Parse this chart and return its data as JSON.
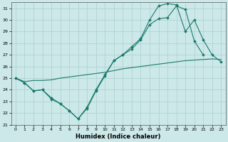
{
  "xlabel": "Humidex (Indice chaleur)",
  "bg_color": "#cce8e8",
  "grid_color": "#aad0d0",
  "line_color": "#1a7a6e",
  "xlim": [
    -0.5,
    23.5
  ],
  "ylim": [
    21,
    31.5
  ],
  "yticks": [
    21,
    22,
    23,
    24,
    25,
    26,
    27,
    28,
    29,
    30,
    31
  ],
  "xticks": [
    0,
    1,
    2,
    3,
    4,
    5,
    6,
    7,
    8,
    9,
    10,
    11,
    12,
    13,
    14,
    15,
    16,
    17,
    18,
    19,
    20,
    21,
    22,
    23
  ],
  "line1_x": [
    0,
    1,
    2,
    3,
    4,
    5,
    6,
    7,
    8,
    9,
    10,
    11,
    12,
    13,
    14,
    15,
    16,
    17,
    18,
    19,
    20,
    21,
    22,
    23
  ],
  "line1_y": [
    25.0,
    24.7,
    24.8,
    24.8,
    24.85,
    25.0,
    25.1,
    25.2,
    25.3,
    25.4,
    25.5,
    25.65,
    25.8,
    25.9,
    26.0,
    26.1,
    26.2,
    26.3,
    26.4,
    26.5,
    26.55,
    26.6,
    26.65,
    26.6
  ],
  "line2_x": [
    0,
    1,
    2,
    3,
    4,
    5,
    6,
    7,
    8,
    9,
    10,
    11,
    12,
    13,
    14,
    15,
    16,
    17,
    18,
    19,
    20,
    21
  ],
  "line2_y": [
    25.0,
    24.6,
    23.9,
    24.0,
    23.3,
    22.8,
    22.2,
    21.5,
    22.4,
    23.9,
    25.2,
    26.5,
    27.0,
    27.5,
    28.3,
    29.6,
    30.1,
    30.2,
    31.2,
    30.9,
    28.2,
    27.0
  ],
  "line3_x": [
    0,
    1,
    2,
    3,
    4,
    5,
    6,
    7,
    8,
    9,
    10,
    11,
    12,
    13,
    14,
    15,
    16,
    17,
    18,
    19,
    20,
    21,
    22,
    23
  ],
  "line3_y": [
    25.0,
    24.6,
    23.9,
    24.0,
    23.2,
    22.8,
    22.2,
    21.5,
    22.5,
    24.0,
    25.3,
    26.5,
    27.0,
    27.7,
    28.4,
    30.0,
    31.2,
    31.4,
    31.3,
    29.0,
    30.0,
    28.3,
    27.0,
    26.4
  ]
}
